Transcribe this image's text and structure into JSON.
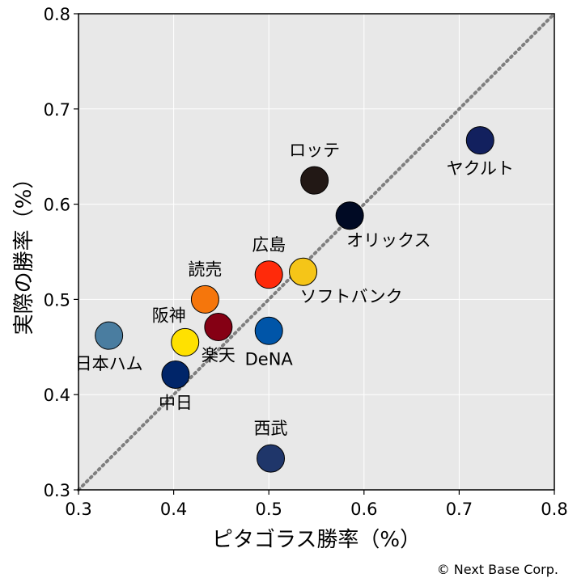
{
  "chart_data": {
    "type": "scatter",
    "xlabel": "ピタゴラス勝率（%）",
    "ylabel": "実際の勝率（%）",
    "xlim": [
      0.3,
      0.8
    ],
    "ylim": [
      0.3,
      0.8
    ],
    "xticks": [
      "0.3",
      "0.4",
      "0.5",
      "0.6",
      "0.7",
      "0.8"
    ],
    "yticks": [
      "0.3",
      "0.4",
      "0.5",
      "0.6",
      "0.7",
      "0.8"
    ],
    "grid": true,
    "reference_line": {
      "style": "dotted",
      "from": [
        0.3,
        0.3
      ],
      "to": [
        0.8,
        0.8
      ],
      "color": "#7f7f7f"
    },
    "points": [
      {
        "label": "ヤクルト",
        "x": 0.722,
        "y": 0.667,
        "color": "#12205e",
        "label_pos": "below"
      },
      {
        "label": "ロッテ",
        "x": 0.548,
        "y": 0.625,
        "color": "#221815",
        "label_pos": "above"
      },
      {
        "label": "オリックス",
        "x": 0.585,
        "y": 0.588,
        "color": "#000a24",
        "label_pos": "below-right"
      },
      {
        "label": "ソフトバンク",
        "x": 0.536,
        "y": 0.529,
        "color": "#f5c518",
        "label_pos": "below-right"
      },
      {
        "label": "広島",
        "x": 0.5,
        "y": 0.526,
        "color": "#ff2a0a",
        "label_pos": "above"
      },
      {
        "label": "読売",
        "x": 0.433,
        "y": 0.5,
        "color": "#f5760c",
        "label_pos": "above"
      },
      {
        "label": "楽天",
        "x": 0.447,
        "y": 0.471,
        "color": "#850014",
        "label_pos": "below"
      },
      {
        "label": "DeNA",
        "x": 0.5,
        "y": 0.467,
        "color": "#0055a8",
        "label_pos": "below"
      },
      {
        "label": "日本ハム",
        "x": 0.332,
        "y": 0.462,
        "color": "#4a7da0",
        "label_pos": "below"
      },
      {
        "label": "阪神",
        "x": 0.412,
        "y": 0.455,
        "color": "#ffe100",
        "label_pos": "above-left"
      },
      {
        "label": "中日",
        "x": 0.402,
        "y": 0.421,
        "color": "#002569",
        "label_pos": "below"
      },
      {
        "label": "西武",
        "x": 0.502,
        "y": 0.333,
        "color": "#1f366a",
        "label_pos": "above"
      }
    ]
  },
  "credit": "© Next Base Corp."
}
